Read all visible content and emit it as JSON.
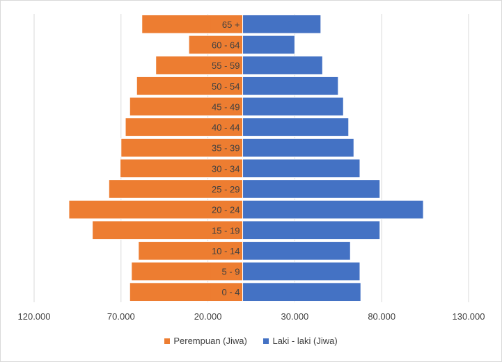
{
  "chart_data": {
    "type": "bar",
    "orientation": "horizontal",
    "layout": "population-pyramid",
    "categories": [
      "0 - 4",
      "5 - 9",
      "10 - 14",
      "15 - 19",
      "20 - 24",
      "25 - 29",
      "30 - 34",
      "35 - 39",
      "40 - 44",
      "45 - 49",
      "50 - 54",
      "55 - 59",
      "60 - 64",
      "65 +"
    ],
    "series": [
      {
        "name": "Perempuan (Jiwa)",
        "side": "left",
        "color": "#ED7D31",
        "values": [
          65000,
          64000,
          60000,
          86500,
          100000,
          77000,
          70500,
          70000,
          67500,
          65000,
          61000,
          50000,
          31000,
          58000
        ]
      },
      {
        "name": "Laki - laki (Jiwa)",
        "side": "right",
        "color": "#4472C4",
        "values": [
          68000,
          67500,
          62000,
          79000,
          104000,
          79000,
          67500,
          64000,
          61000,
          58000,
          55000,
          46000,
          30000,
          45000
        ]
      }
    ],
    "x_ticks": [
      "120.000",
      "70.000",
      "20.000",
      "30.000",
      "80.000",
      "130.000"
    ],
    "xlim": [
      -120000,
      130000
    ],
    "grid": true,
    "legend_position": "bottom"
  }
}
